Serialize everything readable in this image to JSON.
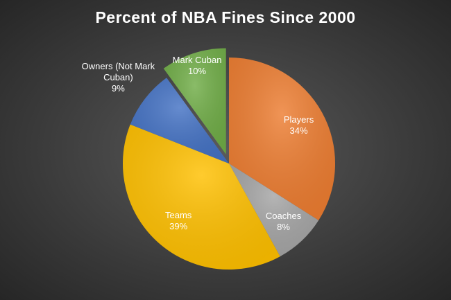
{
  "chart_data": {
    "type": "pie",
    "title": "Percent of NBA Fines Since 2000",
    "categories": [
      "Players",
      "Coaches",
      "Teams",
      "Owners (Not Mark Cuban)",
      "Mark Cuban"
    ],
    "values": [
      34,
      8,
      39,
      9,
      10
    ],
    "value_labels": [
      "34%",
      "8%",
      "39%",
      "9%",
      "10%"
    ],
    "colors": [
      "#ed7d31",
      "#a5a5a5",
      "#ffc000",
      "#4472c4",
      "#70ad47"
    ],
    "exploded": [
      false,
      false,
      false,
      false,
      true
    ]
  }
}
